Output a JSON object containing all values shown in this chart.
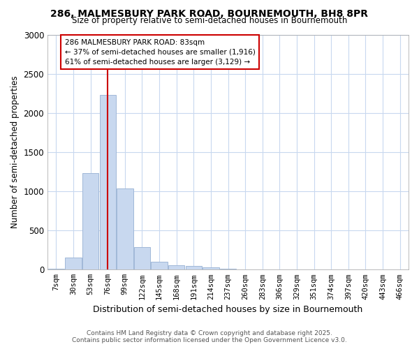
{
  "title": "286, MALMESBURY PARK ROAD, BOURNEMOUTH, BH8 8PR",
  "subtitle": "Size of property relative to semi-detached houses in Bournemouth",
  "xlabel": "Distribution of semi-detached houses by size in Bournemouth",
  "ylabel": "Number of semi-detached properties",
  "footnote": "Contains HM Land Registry data © Crown copyright and database right 2025.\nContains public sector information licensed under the Open Government Licence v3.0.",
  "bin_labels": [
    "7sqm",
    "30sqm",
    "53sqm",
    "76sqm",
    "99sqm",
    "122sqm",
    "145sqm",
    "168sqm",
    "191sqm",
    "214sqm",
    "237sqm",
    "260sqm",
    "283sqm",
    "306sqm",
    "329sqm",
    "351sqm",
    "374sqm",
    "397sqm",
    "420sqm",
    "443sqm",
    "466sqm"
  ],
  "bar_heights": [
    10,
    155,
    1230,
    2230,
    1040,
    285,
    105,
    55,
    45,
    28,
    8,
    0,
    0,
    0,
    0,
    0,
    0,
    0,
    0,
    0,
    0
  ],
  "bar_color": "#c8d8ef",
  "bar_edge_color": "#a0b8d8",
  "grid_color": "#c8d8ef",
  "red_line_x": 3.0,
  "annotation_text": "286 MALMESBURY PARK ROAD: 83sqm\n← 37% of semi-detached houses are smaller (1,916)\n61% of semi-detached houses are larger (3,129) →",
  "annotation_box_color": "#ffffff",
  "annotation_box_edge": "#cc0000",
  "ylim": [
    0,
    3000
  ],
  "yticks": [
    0,
    500,
    1000,
    1500,
    2000,
    2500,
    3000
  ],
  "bg_color": "#ffffff"
}
